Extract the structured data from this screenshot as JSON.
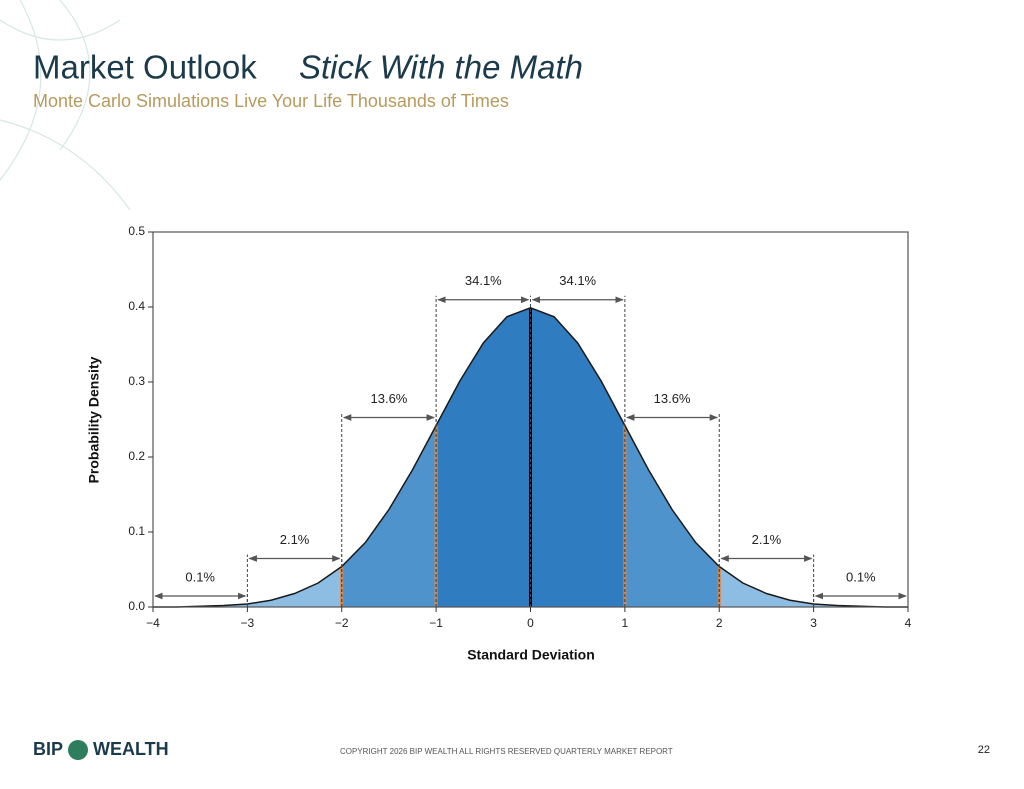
{
  "header": {
    "title": "Market Outlook",
    "emphasis": "Stick With the Math",
    "subtitle": "Monte Carlo Simulations Live Your Life Thousands of Times"
  },
  "chart_data": {
    "type": "density",
    "xlabel": "Standard Deviation",
    "ylabel": "Probability Density",
    "x": [
      -4,
      -3.75,
      -3.5,
      -3.25,
      -3,
      -2.75,
      -2.5,
      -2.25,
      -2,
      -1.75,
      -1.5,
      -1.25,
      -1,
      -0.75,
      -0.5,
      -0.25,
      0,
      0.25,
      0.5,
      0.75,
      1,
      1.25,
      1.5,
      1.75,
      2,
      2.25,
      2.5,
      2.75,
      3,
      3.25,
      3.5,
      3.75,
      4
    ],
    "values": [
      0.0,
      0.0,
      0.001,
      0.002,
      0.004,
      0.009,
      0.018,
      0.032,
      0.054,
      0.086,
      0.13,
      0.183,
      0.242,
      0.301,
      0.352,
      0.387,
      0.399,
      0.387,
      0.352,
      0.301,
      0.242,
      0.183,
      0.13,
      0.086,
      0.054,
      0.032,
      0.018,
      0.009,
      0.004,
      0.002,
      0.001,
      0.0,
      0.0
    ],
    "line_color": "#1a1a1a",
    "bands": {
      "bounds": [
        -4,
        -3,
        -2,
        -1,
        0,
        1,
        2,
        3,
        4
      ],
      "values": [
        0.1,
        2.1,
        13.6,
        34.1,
        34.1,
        13.6,
        2.1,
        0.1
      ],
      "value_labels": [
        "0.1%",
        "2.1%",
        "13.6%",
        "34.1%",
        "34.1%",
        "13.6%",
        "2.1%",
        "0.1%"
      ],
      "colors": [
        "#8dbde3",
        "#8dbde3",
        "#4f93cc",
        "#2f7cc0",
        "#2f7cc0",
        "#4f93cc",
        "#8dbde3",
        "#8dbde3"
      ]
    },
    "dividers": {
      "at": [
        -2,
        -1,
        0,
        1,
        2
      ],
      "colors": [
        "#d9874a",
        "#d9874a",
        "#000000",
        "#d9874a",
        "#d9874a"
      ]
    },
    "xlim": [
      -4,
      4
    ],
    "xticks": [
      {
        "value": -4,
        "label": "−4"
      },
      {
        "value": -3,
        "label": "−3"
      },
      {
        "value": -2,
        "label": "−2"
      },
      {
        "value": -1,
        "label": "−1"
      },
      0,
      1,
      2,
      3,
      4
    ],
    "ylim": [
      0,
      0.5
    ],
    "yticks": [
      {
        "value": 0,
        "label": "0.0"
      },
      0.1,
      0.2,
      0.3,
      0.4,
      0.5
    ]
  },
  "footer": {
    "logo_left": "BIP",
    "logo_right": "WEALTH",
    "copyright": "COPYRIGHT 2026 BIP WEALTH    ALL RIGHTS RESERVED  QUARTERLY MARKET REPORT",
    "page": "22"
  }
}
